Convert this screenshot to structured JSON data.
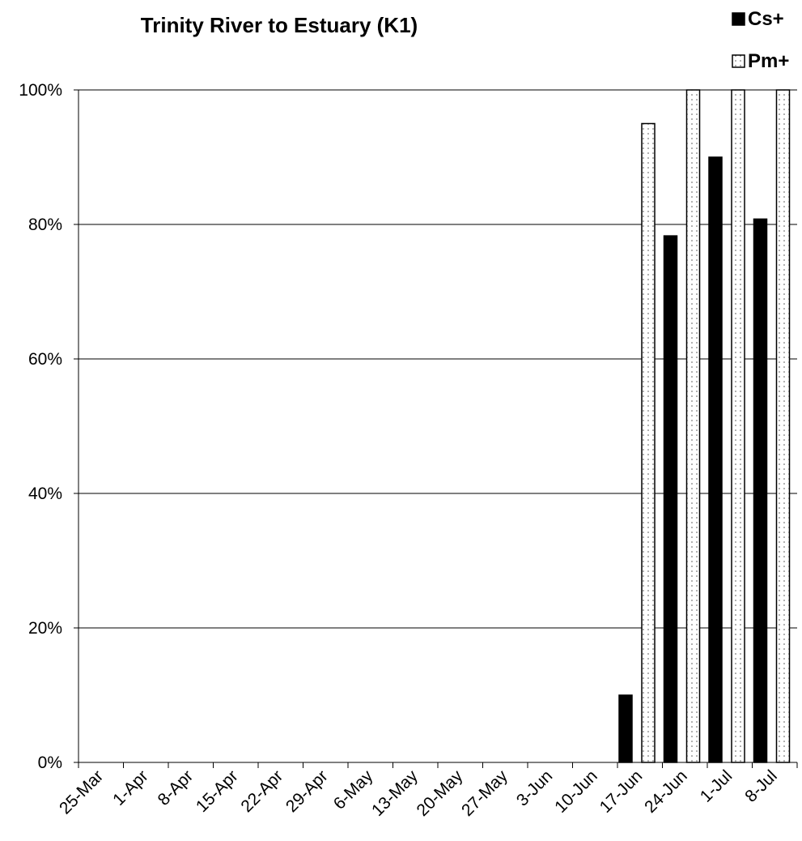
{
  "chart_data": {
    "type": "bar",
    "title": "Trinity River to Estuary (K1)",
    "xlabel": "",
    "ylabel": "",
    "categories": [
      "25-Mar",
      "1-Apr",
      "8-Apr",
      "15-Apr",
      "22-Apr",
      "29-Apr",
      "6-May",
      "13-May",
      "20-May",
      "27-May",
      "3-Jun",
      "10-Jun",
      "17-Jun",
      "24-Jun",
      "1-Jul",
      "8-Jul"
    ],
    "series": [
      {
        "name": "Cs+",
        "fill": "solid",
        "color": "#000000",
        "values": [
          null,
          null,
          null,
          null,
          null,
          null,
          null,
          null,
          null,
          null,
          null,
          null,
          0.1,
          0.783,
          0.9,
          0.808
        ]
      },
      {
        "name": "Pm+",
        "fill": "dotted",
        "color": "#ffffff",
        "values": [
          null,
          null,
          null,
          null,
          null,
          null,
          null,
          null,
          null,
          null,
          null,
          null,
          0.95,
          1.0,
          1.0,
          1.0
        ]
      }
    ],
    "ylim": [
      0,
      1
    ],
    "yticks": [
      "0%",
      "20%",
      "40%",
      "60%",
      "80%",
      "100%"
    ],
    "grid": true,
    "legend": "top-right"
  }
}
